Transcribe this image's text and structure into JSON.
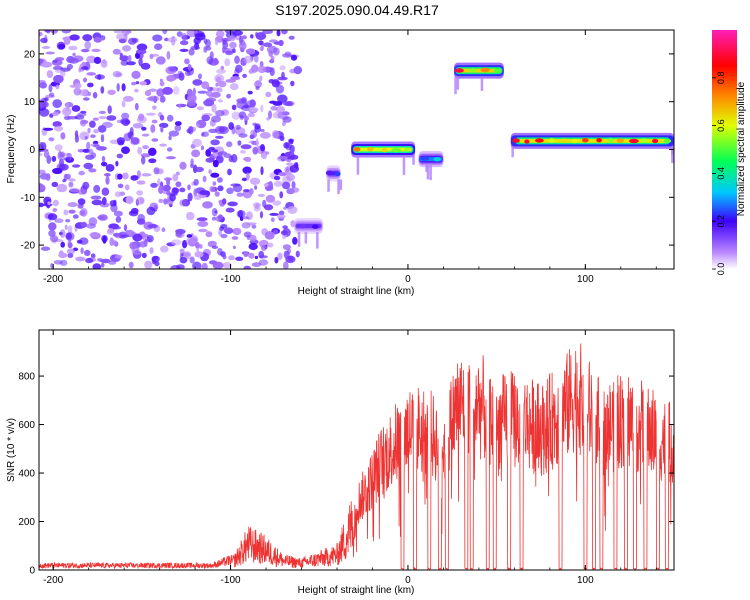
{
  "chart_data": [
    {
      "type": "heatmap",
      "title": "S197.2025.090.04.49.R17",
      "xlabel": "Height of straight line (km)",
      "ylabel": "Frequency (Hz)",
      "xlim": [
        -208,
        150
      ],
      "ylim": [
        -25,
        25
      ],
      "x_ticks": [
        -200,
        -100,
        0,
        100
      ],
      "y_ticks": [
        -20,
        -10,
        0,
        10,
        20
      ],
      "colorbar": {
        "label": "Normalized spectral amplitude",
        "range": [
          0,
          1
        ],
        "ticks": [
          "0.0",
          "0.2",
          "0.4",
          "0.6",
          "0.8"
        ],
        "colormap": "rainbow (white/purple low → blue → cyan → green → yellow → red → magenta high)"
      },
      "noise_region": {
        "x_range": [
          -208,
          -62
        ],
        "freq_range": [
          -25,
          25
        ],
        "amplitude_range": [
          0.05,
          0.2
        ]
      },
      "segments": [
        {
          "x_start": -64,
          "x_end": -48,
          "freq": -16,
          "peak_amplitude": 0.22
        },
        {
          "x_start": -46,
          "x_end": -38,
          "freq": -5,
          "peak_amplitude": 0.25
        },
        {
          "x_start": -32,
          "x_end": 4,
          "freq": 0,
          "peak_amplitude": 0.85
        },
        {
          "x_start": 6,
          "x_end": 20,
          "freq": -2,
          "peak_amplitude": 0.4
        },
        {
          "x_start": 26,
          "x_end": 54,
          "freq": 16.5,
          "peak_amplitude": 0.92
        },
        {
          "x_start": 58,
          "x_end": 150,
          "freq": 1.8,
          "peak_amplitude": 0.9
        }
      ]
    },
    {
      "type": "line",
      "xlabel": "Height of straight line (km)",
      "ylabel": "SNR (10 * v/v)",
      "xlim": [
        -208,
        150
      ],
      "ylim": [
        0,
        990
      ],
      "x_ticks": [
        -200,
        -100,
        0,
        100
      ],
      "y_ticks": [
        0,
        200,
        400,
        600,
        800
      ],
      "color": "#ee3333",
      "envelope": [
        {
          "x": -208,
          "y": 25
        },
        {
          "x": -110,
          "y": 25
        },
        {
          "x": -98,
          "y": 60
        },
        {
          "x": -90,
          "y": 170
        },
        {
          "x": -80,
          "y": 130
        },
        {
          "x": -70,
          "y": 60
        },
        {
          "x": -60,
          "y": 45
        },
        {
          "x": -40,
          "y": 100
        },
        {
          "x": -32,
          "y": 280
        },
        {
          "x": -22,
          "y": 420
        },
        {
          "x": -16,
          "y": 530
        },
        {
          "x": -5,
          "y": 650
        },
        {
          "x": 0,
          "y": 700
        },
        {
          "x": 10,
          "y": 700
        },
        {
          "x": 20,
          "y": 620
        },
        {
          "x": 28,
          "y": 820
        },
        {
          "x": 40,
          "y": 830
        },
        {
          "x": 50,
          "y": 730
        },
        {
          "x": 62,
          "y": 760
        },
        {
          "x": 75,
          "y": 700
        },
        {
          "x": 88,
          "y": 800
        },
        {
          "x": 95,
          "y": 880
        },
        {
          "x": 110,
          "y": 700
        },
        {
          "x": 122,
          "y": 760
        },
        {
          "x": 135,
          "y": 700
        },
        {
          "x": 150,
          "y": 620
        }
      ],
      "dropouts_x": [
        -3,
        4,
        12,
        18,
        22,
        33,
        36,
        45,
        49,
        57,
        64,
        86,
        100,
        105,
        109,
        117,
        123,
        128,
        134,
        141,
        146
      ]
    }
  ]
}
